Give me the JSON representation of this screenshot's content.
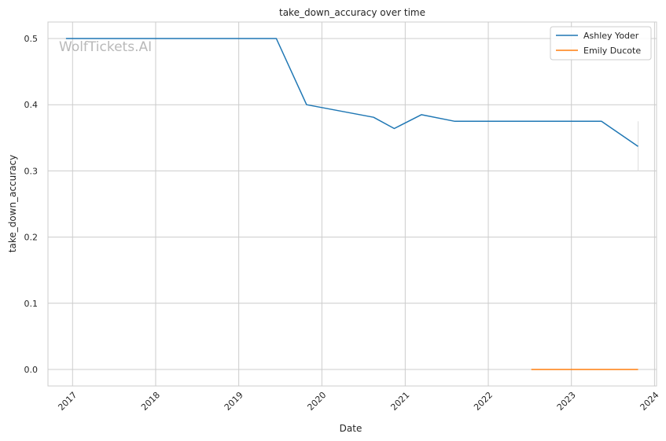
{
  "chart_data": {
    "type": "line",
    "title": "take_down_accuracy over time",
    "xlabel": "Date",
    "ylabel": "take_down_accuracy",
    "watermark": "WolfTickets.AI",
    "x_type": "date",
    "xlim": [
      "2016-09-15",
      "2024-01-10"
    ],
    "ylim": [
      -0.025,
      0.525
    ],
    "x_ticks": [
      "2017",
      "2018",
      "2019",
      "2020",
      "2021",
      "2022",
      "2023",
      "2024"
    ],
    "y_ticks": [
      "0.0",
      "0.1",
      "0.2",
      "0.3",
      "0.4",
      "0.5"
    ],
    "grid": true,
    "legend_position": "top-right",
    "series": [
      {
        "name": "Ashley Yoder",
        "color": "#1f77b4",
        "points": [
          {
            "x": "2016-12-03",
            "y": 0.5
          },
          {
            "x": "2019-06-15",
            "y": 0.5
          },
          {
            "x": "2019-10-26",
            "y": 0.4
          },
          {
            "x": "2020-08-15",
            "y": 0.381
          },
          {
            "x": "2020-11-14",
            "y": 0.364
          },
          {
            "x": "2021-03-13",
            "y": 0.385
          },
          {
            "x": "2021-08-07",
            "y": 0.375
          },
          {
            "x": "2023-05-13",
            "y": 0.375
          },
          {
            "x": "2023-10-21",
            "y": 0.337
          }
        ]
      },
      {
        "name": "Emily Ducote",
        "color": "#ff7f0e",
        "points": [
          {
            "x": "2022-07-09",
            "y": 0.0
          },
          {
            "x": "2023-10-21",
            "y": 0.0
          }
        ]
      }
    ],
    "vertical_marks": [
      {
        "x": "2023-10-21",
        "y_from": 0.3,
        "y_to": 0.375,
        "color": "#dddddd"
      }
    ]
  }
}
